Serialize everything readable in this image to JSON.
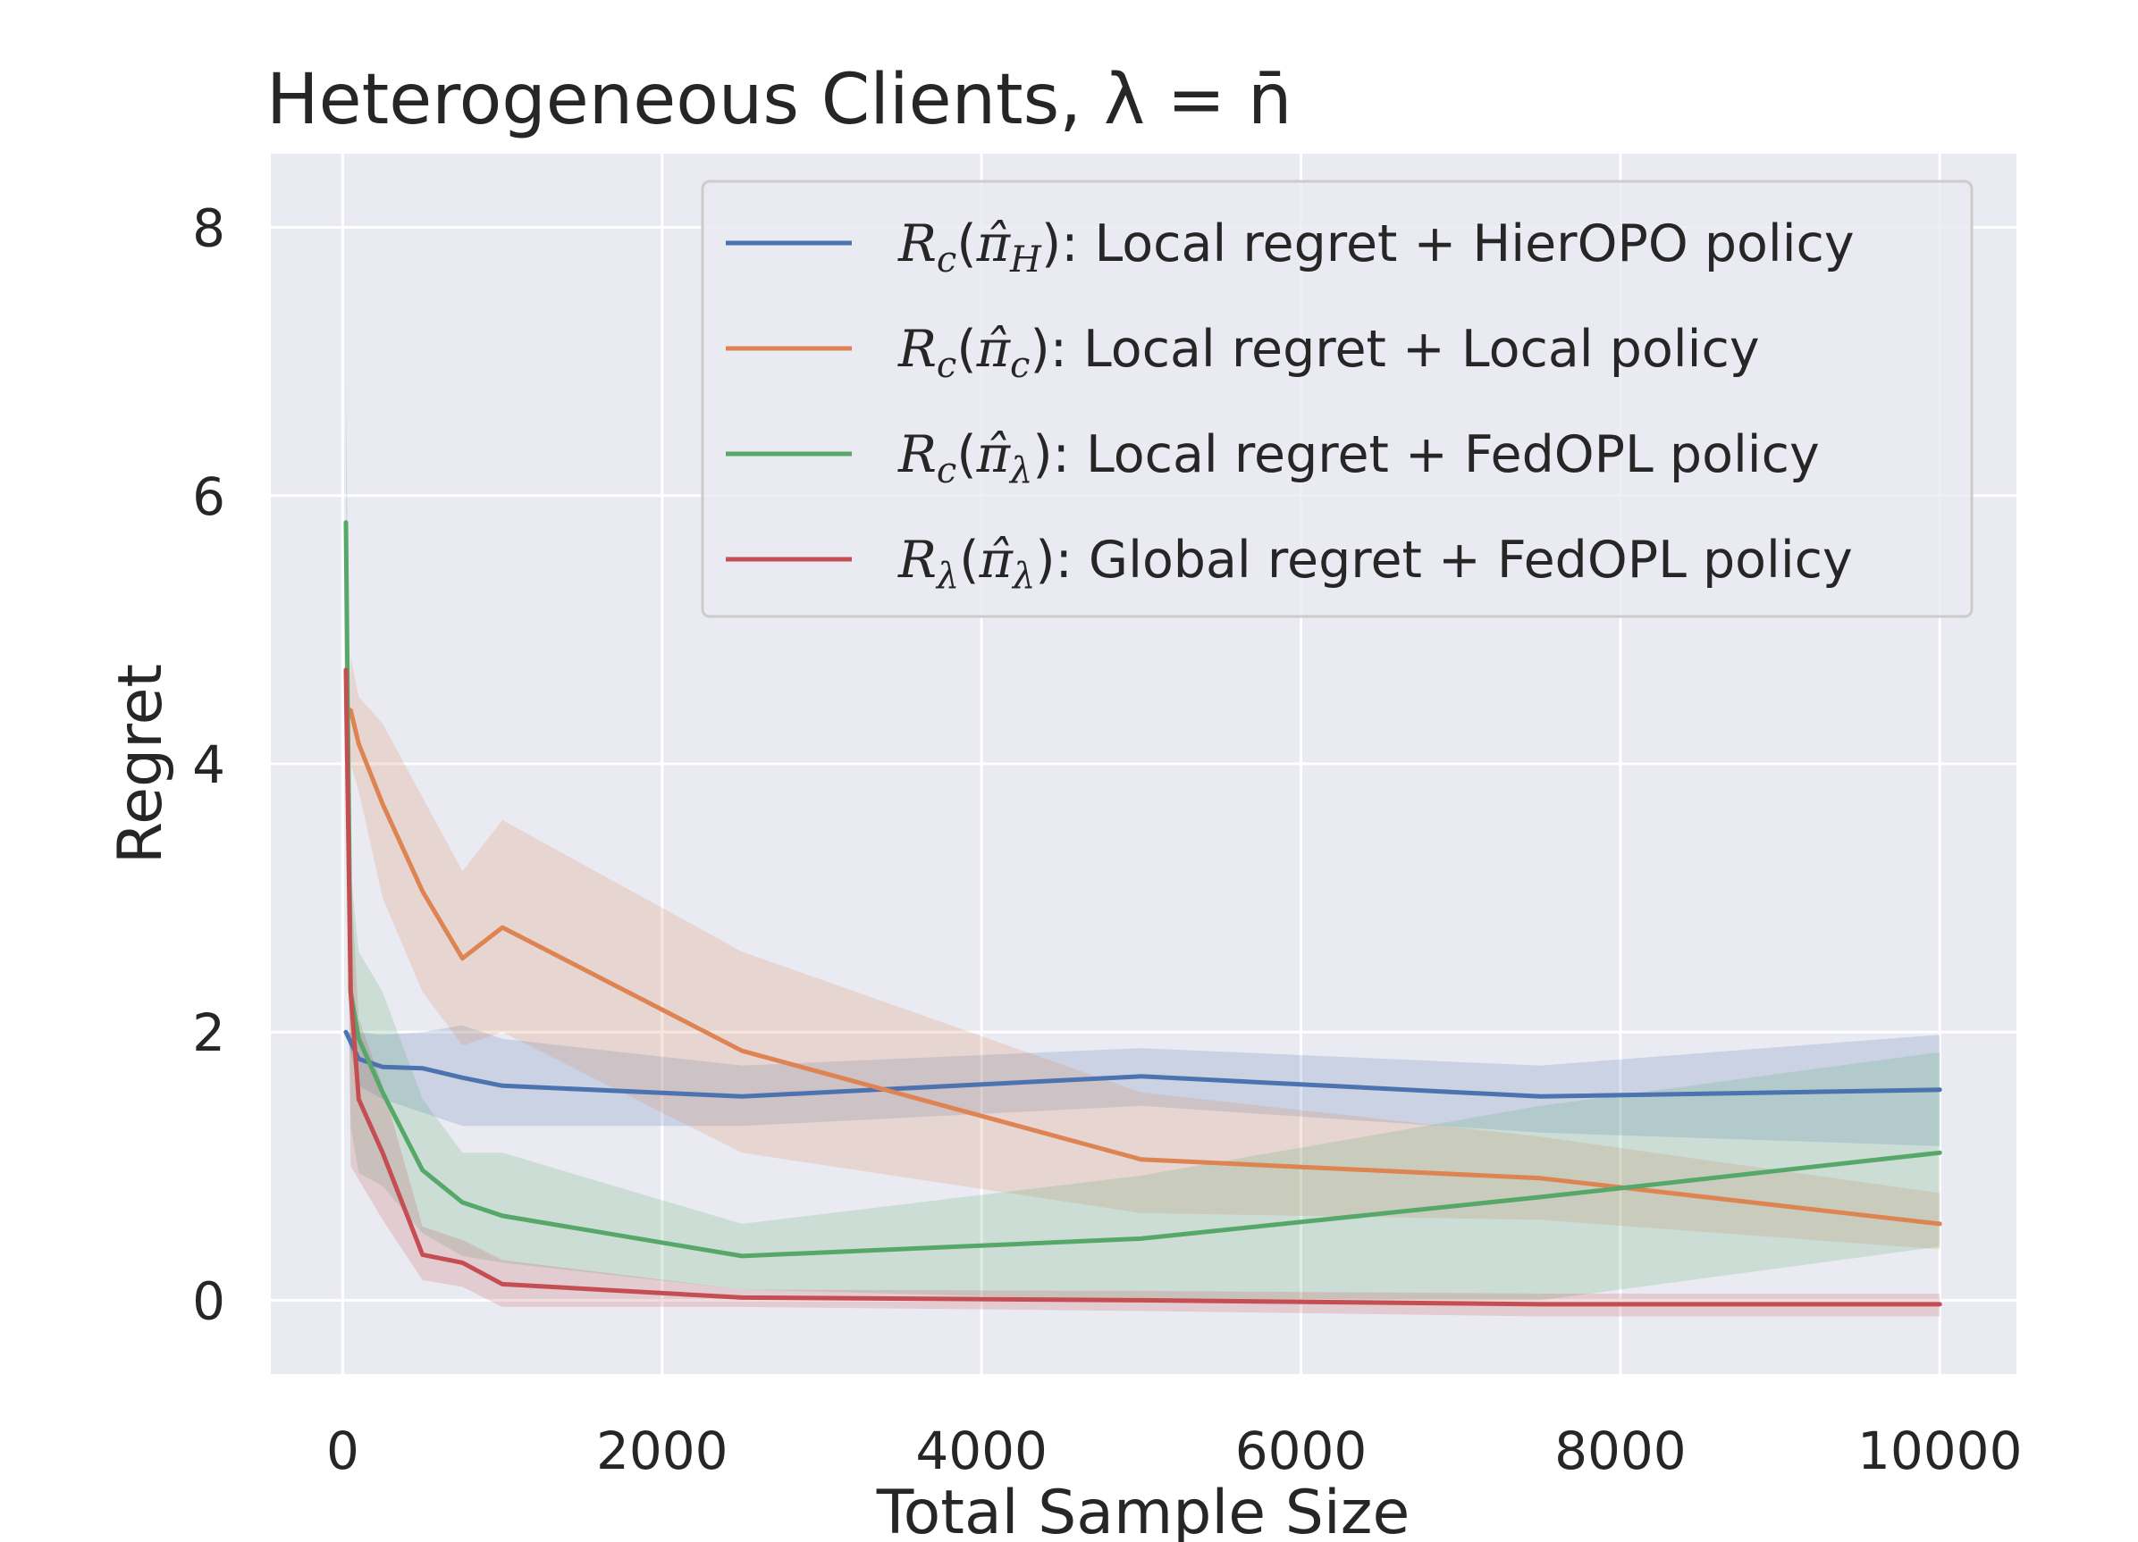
{
  "chart_data": {
    "type": "line",
    "title": "Heterogeneous Clients, λ = n̄",
    "xlabel": "Total Sample Size",
    "ylabel": "Regret",
    "xlim": [
      -450,
      10480
    ],
    "ylim": [
      -0.55,
      8.55
    ],
    "xticks": [
      0,
      2000,
      4000,
      6000,
      8000,
      10000
    ],
    "yticks": [
      0,
      2,
      4,
      6,
      8
    ],
    "grid": true,
    "legend_position": "top-right",
    "colors": {
      "background": "#eaeaf2",
      "grid": "#ffffff",
      "text": "#262626"
    },
    "series": [
      {
        "name": "R_c(π̂_H): Local regret + HierOPO policy",
        "legend_math": {
          "a": "R",
          "sub_a": "c",
          "b": "π̂",
          "sub_b": "H"
        },
        "legend_text": ": Local regret + HierOPO policy",
        "color": "#4c72b0",
        "x": [
          20,
          100,
          250,
          500,
          750,
          1000,
          2500,
          5000,
          7500,
          10000
        ],
        "values": [
          2.0,
          1.8,
          1.74,
          1.73,
          1.66,
          1.6,
          1.52,
          1.67,
          1.52,
          1.57
        ],
        "lower": [
          2.0,
          1.6,
          1.5,
          1.4,
          1.3,
          1.3,
          1.3,
          1.45,
          1.25,
          1.15
        ],
        "upper": [
          2.0,
          2.0,
          1.98,
          2.0,
          2.05,
          1.95,
          1.75,
          1.88,
          1.75,
          1.98
        ]
      },
      {
        "name": "R_c(π̂_c): Local regret + Local policy",
        "legend_math": {
          "a": "R",
          "sub_a": "c",
          "b": "π̂",
          "sub_b": "c"
        },
        "legend_text": ": Local regret + Local policy",
        "color": "#dd8452",
        "x": [
          50,
          100,
          250,
          500,
          750,
          1000,
          2500,
          5000,
          7500,
          10000
        ],
        "values": [
          4.4,
          4.15,
          3.7,
          3.05,
          2.55,
          2.78,
          1.86,
          1.05,
          0.91,
          0.57
        ],
        "lower": [
          4.0,
          3.8,
          3.0,
          2.3,
          1.9,
          2.0,
          1.1,
          0.65,
          0.6,
          0.38
        ],
        "upper": [
          4.8,
          4.5,
          4.3,
          3.75,
          3.2,
          3.58,
          2.6,
          1.55,
          1.22,
          0.8
        ]
      },
      {
        "name": "R_c(π̂_λ): Local regret + FedOPL policy",
        "legend_math": {
          "a": "R",
          "sub_a": "c",
          "b": "π̂",
          "sub_b": "λ"
        },
        "legend_text": ": Local regret + FedOPL policy",
        "color": "#55a868",
        "x": [
          20,
          50,
          100,
          250,
          500,
          750,
          1000,
          2500,
          5000,
          7500,
          10000
        ],
        "values": [
          5.8,
          2.3,
          1.95,
          1.55,
          0.97,
          0.73,
          0.63,
          0.33,
          0.46,
          0.77,
          1.1
        ],
        "lower": [
          4.7,
          1.3,
          0.95,
          0.85,
          0.5,
          0.33,
          0.28,
          0.08,
          0.0,
          0.0,
          0.4
        ],
        "upper": [
          6.9,
          3.2,
          2.6,
          2.3,
          1.5,
          1.1,
          1.1,
          0.57,
          0.93,
          1.45,
          1.85
        ]
      },
      {
        "name": "R_λ(π̂_λ): Global regret + FedOPL policy",
        "legend_math": {
          "a": "R",
          "sub_a": "λ",
          "b": "π̂",
          "sub_b": "λ"
        },
        "legend_text": ": Global regret + FedOPL policy",
        "color": "#c44e52",
        "x": [
          20,
          50,
          100,
          250,
          500,
          750,
          1000,
          2500,
          5000,
          7500,
          10000
        ],
        "values": [
          4.7,
          2.3,
          1.5,
          1.1,
          0.34,
          0.28,
          0.12,
          0.02,
          0.0,
          -0.03,
          -0.03
        ],
        "lower": [
          4.2,
          1.0,
          0.9,
          0.6,
          0.15,
          0.1,
          -0.05,
          -0.05,
          -0.08,
          -0.12,
          -0.12
        ],
        "upper": [
          5.2,
          3.2,
          2.1,
          1.6,
          0.55,
          0.45,
          0.3,
          0.08,
          0.07,
          0.05,
          0.05
        ]
      }
    ]
  }
}
